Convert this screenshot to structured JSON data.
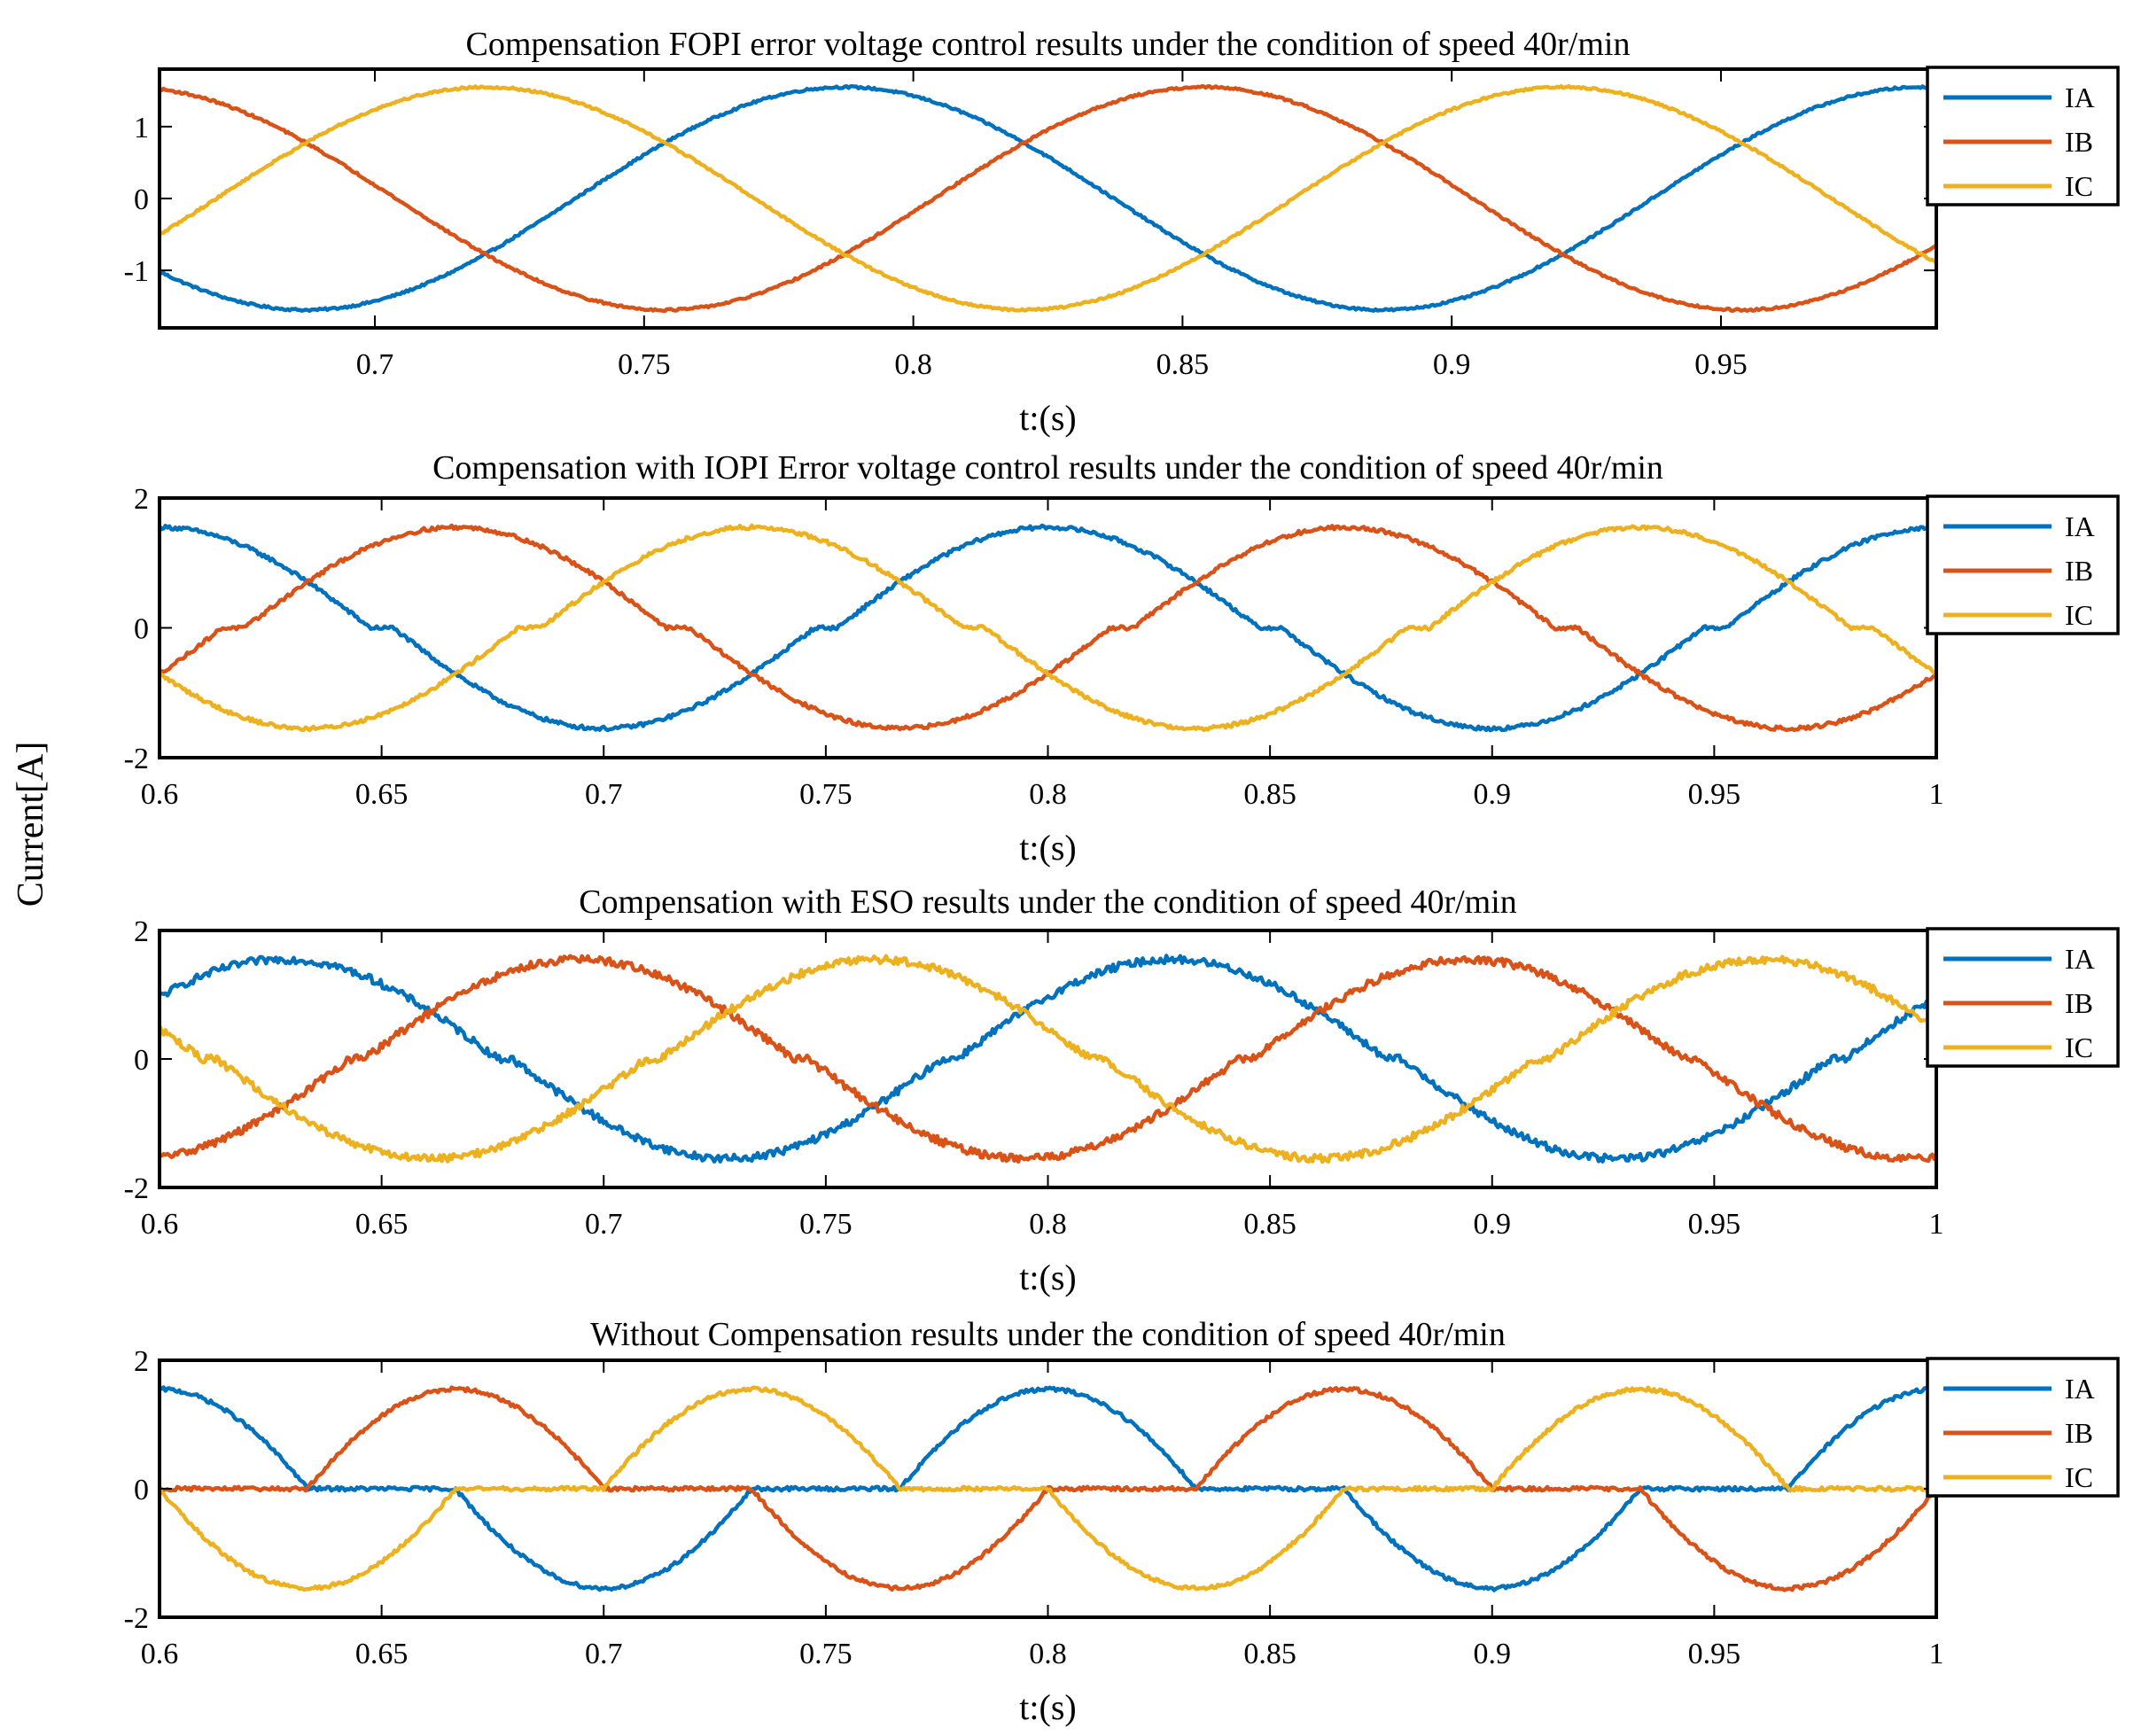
{
  "figure": {
    "ylabel": "Current[A]",
    "colors": {
      "IA": "#0072BD",
      "IB": "#D95319",
      "IC": "#EDB120",
      "axis": "#000000"
    }
  },
  "chart_data": [
    {
      "type": "line",
      "title": "Compensation FOPI error voltage control results under the condition of speed 40r/min",
      "xlabel": "t:(s)",
      "xlim": [
        0.66,
        0.99
      ],
      "ylim": [
        -1.8,
        1.8
      ],
      "xticks": [
        0.7,
        0.75,
        0.8,
        0.85,
        0.9,
        0.95
      ],
      "xtick_labels": [
        "0.7",
        "0.75",
        "0.8",
        "0.85",
        "0.9",
        "0.95"
      ],
      "yticks": [
        1,
        0,
        -1
      ],
      "ytick_labels": [
        "1",
        "0",
        "-1"
      ],
      "amplitude": 1.55,
      "frequency_hz": 5,
      "phase_IA_deg": 113,
      "flat_zone": 0,
      "noise": 0.015,
      "legend": [
        "IA",
        "IB",
        "IC"
      ],
      "legend_position": "top-right outside"
    },
    {
      "type": "line",
      "title": "Compensation with IOPI Error voltage control results under the condition of speed 40r/min",
      "xlabel": "t:(s)",
      "xlim": [
        0.6,
        1.0
      ],
      "ylim": [
        -2,
        2
      ],
      "xticks": [
        0.6,
        0.65,
        0.7,
        0.75,
        0.8,
        0.85,
        0.9,
        0.95,
        1
      ],
      "xtick_labels": [
        "0.6",
        "0.65",
        "0.7",
        "0.75",
        "0.8",
        "0.85",
        "0.9",
        "0.95",
        "1"
      ],
      "yticks": [
        2,
        0,
        -2
      ],
      "ytick_labels": [
        "2",
        "0",
        "-2"
      ],
      "amplitude": 1.55,
      "frequency_hz": 5,
      "phase_IA_deg": 90,
      "flat_zone": 0.08,
      "noise": 0.03,
      "legend": [
        "IA",
        "IB",
        "IC"
      ],
      "legend_position": "top-right outside"
    },
    {
      "type": "line",
      "title": "Compensation with ESO results under the condition of speed 40r/min",
      "xlabel": "t:(s)",
      "xlim": [
        0.6,
        1.0
      ],
      "ylim": [
        -2,
        2
      ],
      "xticks": [
        0.6,
        0.65,
        0.7,
        0.75,
        0.8,
        0.85,
        0.9,
        0.95,
        1
      ],
      "xtick_labels": [
        "0.6",
        "0.65",
        "0.7",
        "0.75",
        "0.8",
        "0.85",
        "0.9",
        "0.95",
        "1"
      ],
      "yticks": [
        2,
        0,
        -2
      ],
      "ytick_labels": [
        "2",
        "0",
        "-2"
      ],
      "amplitude": 1.55,
      "frequency_hz": 5,
      "phase_IA_deg": 40,
      "flat_zone": 0.05,
      "noise": 0.06,
      "legend": [
        "IA",
        "IB",
        "IC"
      ],
      "legend_position": "top-right outside"
    },
    {
      "type": "line",
      "title": "Without Compensation results under the condition of speed 40r/min",
      "xlabel": "t:(s)",
      "xlim": [
        0.6,
        1.0
      ],
      "ylim": [
        -2,
        2
      ],
      "xticks": [
        0.6,
        0.65,
        0.7,
        0.75,
        0.8,
        0.85,
        0.9,
        0.95,
        1
      ],
      "xtick_labels": [
        "0.6",
        "0.65",
        "0.7",
        "0.75",
        "0.8",
        "0.85",
        "0.9",
        "0.95",
        "1"
      ],
      "yticks": [
        2,
        0,
        -2
      ],
      "ytick_labels": [
        "2",
        "0",
        "-2"
      ],
      "amplitude": 1.55,
      "frequency_hz": 5,
      "phase_IA_deg": 90,
      "flat_zone": 0.5,
      "noise": 0.03,
      "legend": [
        "IA",
        "IB",
        "IC"
      ],
      "legend_position": "top-right outside"
    }
  ]
}
